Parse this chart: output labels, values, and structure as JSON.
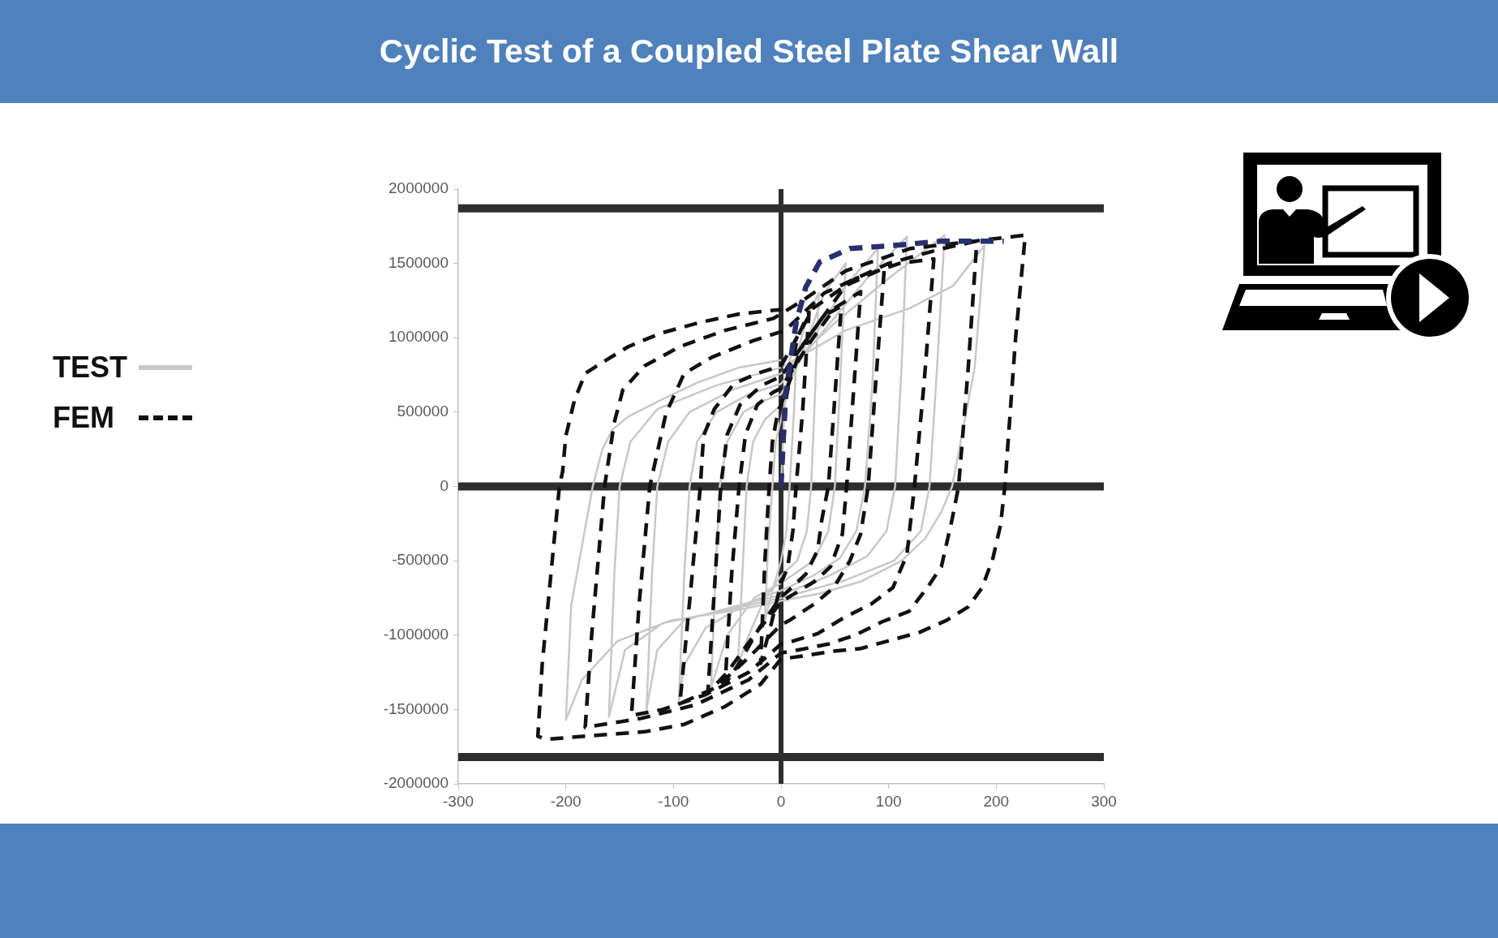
{
  "chart_data": {
    "type": "line",
    "title": "Cyclic Test of a Coupled Steel Plate Shear Wall",
    "xlim": [
      -300,
      300
    ],
    "xticks": [
      -300,
      -200,
      -100,
      0,
      100,
      200,
      300
    ],
    "ylim": [
      -2000000,
      2000000
    ],
    "yticks": [
      -2000000,
      -1500000,
      -1000000,
      -500000,
      0,
      500000,
      1000000,
      1500000,
      2000000
    ],
    "legend": "left",
    "ref_lines": [
      {
        "axis": "y",
        "value": 1870000,
        "color": "#2e2e2e"
      },
      {
        "axis": "y",
        "value": 0,
        "color": "#2e2e2e"
      },
      {
        "axis": "y",
        "value": -1820000,
        "color": "#2e2e2e"
      },
      {
        "axis": "x",
        "value": 0,
        "color": "#2e2e2e"
      }
    ],
    "series": [
      {
        "name": "TEST",
        "color": "#c8c8c8",
        "line_style": "solid",
        "x": [
          0,
          3,
          8,
          15,
          12,
          8,
          5,
          0,
          -8,
          -15,
          -12,
          -8,
          -5,
          0,
          15,
          25,
          35,
          32,
          28,
          24,
          15,
          0,
          -15,
          -30,
          -40,
          -36,
          -32,
          -26,
          -15,
          0,
          20,
          40,
          60,
          55,
          50,
          44,
          30,
          10,
          0,
          -25,
          -50,
          -65,
          -61,
          -57,
          -50,
          -35,
          -15,
          0,
          30,
          60,
          90,
          85,
          78,
          70,
          55,
          30,
          0,
          -30,
          -70,
          -90,
          -95,
          -90,
          -85,
          -78,
          -60,
          -30,
          0,
          40,
          80,
          117,
          112,
          106,
          98,
          80,
          45,
          0,
          -40,
          -90,
          -115,
          -125,
          -120,
          -115,
          -105,
          -85,
          -45,
          0,
          50,
          100,
          152,
          145,
          138,
          130,
          105,
          60,
          0,
          -50,
          -110,
          -145,
          -160,
          -155,
          -150,
          -140,
          -115,
          -60,
          0,
          60,
          120,
          160,
          189,
          180,
          159,
          149,
          134,
          112,
          74,
          36,
          0,
          -39,
          -102,
          -152,
          -185,
          -200,
          -195,
          -175,
          -166,
          -157,
          -142,
          -112,
          -77,
          -39,
          0
        ],
        "values": [
          0,
          500000,
          850000,
          1000000,
          500000,
          0,
          -300000,
          -500000,
          -700000,
          -900000,
          -400000,
          0,
          300000,
          450000,
          900000,
          1150000,
          1300000,
          700000,
          0,
          -300000,
          -500000,
          -600000,
          -750000,
          -1000000,
          -1200000,
          -600000,
          0,
          300000,
          450000,
          550000,
          900000,
          1300000,
          1500000,
          700000,
          0,
          -300000,
          -500000,
          -600000,
          -650000,
          -750000,
          -1000000,
          -1350000,
          -600000,
          0,
          300000,
          500000,
          580000,
          620000,
          1000000,
          1350000,
          1600000,
          700000,
          0,
          -300000,
          -480000,
          -600000,
          -700000,
          -780000,
          -950000,
          -1200000,
          -1450000,
          -600000,
          0,
          300000,
          500000,
          620000,
          690000,
          1050000,
          1400000,
          1680000,
          800000,
          0,
          -300000,
          -470000,
          -600000,
          -730000,
          -800000,
          -900000,
          -1100000,
          -1500000,
          -600000,
          0,
          300000,
          500000,
          650000,
          760000,
          1100000,
          1400000,
          1690000,
          800000,
          0,
          -300000,
          -500000,
          -630000,
          -750000,
          -830000,
          -920000,
          -1100000,
          -1550000,
          -600000,
          0,
          300000,
          520000,
          680000,
          800000,
          1050000,
          1200000,
          1350000,
          1620000,
          800000,
          0,
          -170000,
          -350000,
          -500000,
          -640000,
          -720000,
          -770000,
          -830000,
          -900000,
          -1040000,
          -1300000,
          -1570000,
          -800000,
          0,
          250000,
          380000,
          470000,
          580000,
          700000,
          800000,
          850000
        ]
      },
      {
        "name": "FEM",
        "color": "#111111",
        "line_style": "dashed",
        "x": [
          0,
          5,
          15,
          26,
          20,
          14,
          11,
          6,
          0,
          -10,
          -19,
          -15,
          -11,
          -8,
          -3,
          0,
          20,
          40,
          56,
          50,
          44,
          38,
          34,
          23,
          4,
          0,
          -20,
          -40,
          -52,
          -46,
          -39,
          -33,
          -22,
          -8,
          0,
          25,
          50,
          74,
          67,
          61,
          57,
          46,
          31,
          6,
          0,
          -25,
          -50,
          -68,
          -62,
          -56,
          -50,
          -38,
          -18,
          0,
          30,
          60,
          96,
          88,
          81,
          74,
          64,
          49,
          31,
          8,
          0,
          -30,
          -60,
          -94,
          -84,
          -75,
          -72,
          -62,
          -44,
          -22,
          0,
          30,
          70,
          110,
          142,
          133,
          124,
          117,
          104,
          84,
          59,
          34,
          11,
          0,
          -30,
          -70,
          -110,
          -139,
          -132,
          -122,
          -107,
          -90,
          -64,
          -26,
          4,
          40,
          100,
          150,
          182,
          174,
          165,
          159,
          149,
          136,
          119,
          94,
          69,
          44,
          16,
          0,
          -30,
          -80,
          -130,
          -182,
          -176,
          -170,
          -164,
          -155,
          -147,
          -127,
          -94,
          -52,
          -7,
          20,
          60,
          120,
          180,
          227,
          218,
          208,
          204,
          197,
          187,
          174,
          154,
          129,
          99,
          74,
          46,
          21,
          0,
          -19,
          -52,
          -90,
          -127,
          -165,
          -218,
          -226,
          -222,
          -214,
          -206,
          -203,
          -200,
          -192,
          -182,
          -167,
          -142,
          -112,
          -77,
          -39,
          0
        ],
        "values": [
          0,
          600000,
          1000000,
          1170000,
          500000,
          0,
          -300000,
          -550000,
          -650000,
          -950000,
          -1190000,
          -500000,
          0,
          300000,
          500000,
          550000,
          950000,
          1150000,
          1210000,
          600000,
          0,
          -220000,
          -430000,
          -590000,
          -720000,
          -740000,
          -950000,
          -1200000,
          -1330000,
          -600000,
          0,
          350000,
          550000,
          630000,
          660000,
          950000,
          1200000,
          1310000,
          600000,
          0,
          -320000,
          -540000,
          -640000,
          -750000,
          -780000,
          -1000000,
          -1250000,
          -1390000,
          -700000,
          0,
          350000,
          550000,
          680000,
          740000,
          1050000,
          1350000,
          1470000,
          700000,
          0,
          -320000,
          -500000,
          -680000,
          -790000,
          -900000,
          -930000,
          -1150000,
          -1350000,
          -1460000,
          -700000,
          0,
          340000,
          520000,
          690000,
          760000,
          810000,
          1200000,
          1400000,
          1500000,
          1530000,
          700000,
          0,
          -460000,
          -680000,
          -790000,
          -880000,
          -990000,
          -1040000,
          -1060000,
          -1250000,
          -1400000,
          -1500000,
          -1540000,
          -800000,
          0,
          490000,
          760000,
          870000,
          980000,
          1050000,
          1300000,
          1500000,
          1600000,
          1650000,
          800000,
          0,
          -220000,
          -540000,
          -680000,
          -840000,
          -910000,
          -1000000,
          -1060000,
          -1100000,
          -1120000,
          -1300000,
          -1470000,
          -1560000,
          -1620000,
          -1000000,
          -500000,
          0,
          430000,
          650000,
          810000,
          940000,
          1050000,
          1130000,
          1250000,
          1450000,
          1600000,
          1650000,
          1690000,
          1000000,
          0,
          -260000,
          -480000,
          -680000,
          -810000,
          -900000,
          -980000,
          -1040000,
          -1090000,
          -1110000,
          -1140000,
          -1160000,
          -1330000,
          -1480000,
          -1600000,
          -1650000,
          -1670000,
          -1700000,
          -1680000,
          -1200000,
          -600000,
          0,
          100000,
          340000,
          580000,
          760000,
          830000,
          940000,
          1030000,
          1100000,
          1160000,
          1190000
        ]
      },
      {
        "color": "#283070",
        "line_style": "dashed",
        "x": [
          0,
          2,
          4,
          14,
          23,
          36,
          64,
          104,
          149,
          207
        ],
        "values": [
          0,
          300000,
          610000,
          1100000,
          1340000,
          1510000,
          1600000,
          1620000,
          1650000,
          1650000
        ]
      }
    ]
  }
}
